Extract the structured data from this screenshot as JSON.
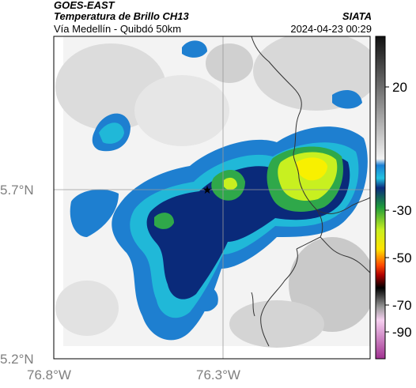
{
  "header": {
    "satellite": "GOES-EAST",
    "product": "Temperatura de Brillo CH13",
    "region": "Vía Medellín - Quibdó 50km",
    "brand": "SIATA",
    "timestamp": "2024-04-23 00:29"
  },
  "axes": {
    "lat_labels": [
      "5.7°N",
      "5.2°N"
    ],
    "lon_labels": [
      "76.8°W",
      "76.3°W"
    ]
  },
  "colorbar": {
    "ticks": [
      "20",
      "-30",
      "-50",
      "-70",
      "-90"
    ]
  },
  "map": {
    "marker": "star-icon",
    "colors": {
      "land_light": "#f4f4f4",
      "land_mid": "#d9d9d9",
      "cloud_blue": "#1e7fd0",
      "cloud_cyan": "#20b8d8",
      "cloud_navy": "#0a2a7a",
      "cloud_green": "#2fa84a",
      "cloud_lime": "#c8f020",
      "cloud_yellow": "#f8f000"
    }
  }
}
